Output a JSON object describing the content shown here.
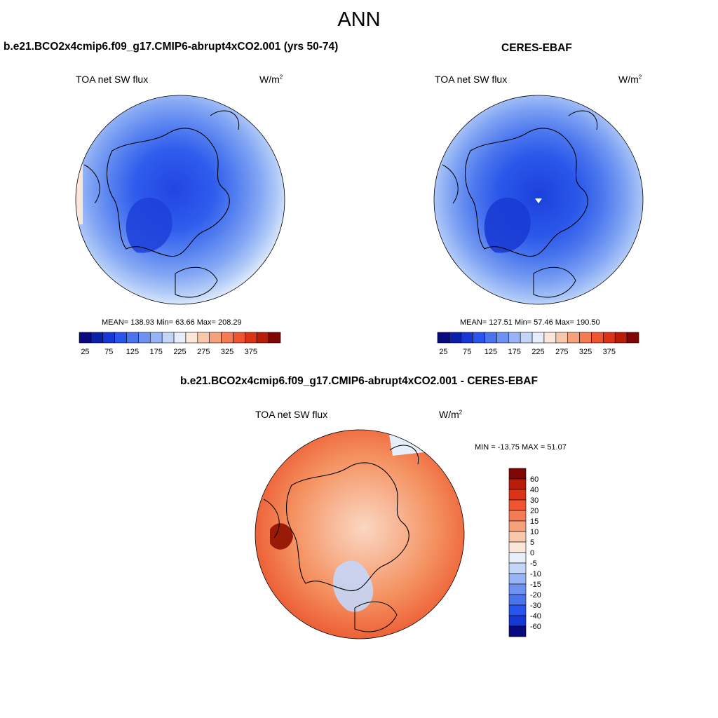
{
  "figure": {
    "title": "ANN",
    "panel_test": {
      "title": "b.e21.BCO2x4cmip6.f09_g17.CMIP6-abrupt4xCO2.001 (yrs 50-74)",
      "variable": "TOA net SW flux",
      "units_base": "W/m",
      "units_exp": "2",
      "stats": "MEAN= 138.93  Min=  63.66  Max= 208.29",
      "mean": 138.93,
      "min": 63.66,
      "max": 208.29
    },
    "panel_ref": {
      "title": "CERES-EBAF",
      "variable": "TOA net SW flux",
      "units_base": "W/m",
      "units_exp": "2",
      "stats": "MEAN= 127.51  Min=  57.46  Max= 190.50",
      "mean": 127.51,
      "min": 57.46,
      "max": 190.5
    },
    "panel_diff": {
      "title": "b.e21.BCO2x4cmip6.f09_g17.CMIP6-abrupt4xCO2.001 - CERES-EBAF",
      "variable": "TOA net SW flux",
      "units_base": "W/m",
      "units_exp": "2",
      "stats": "MIN = -13.75 MAX =  51.07",
      "min": -13.75,
      "max": 51.07
    },
    "colorbar_abs": {
      "tick_labels": [
        "25",
        "75",
        "125",
        "175",
        "225",
        "275",
        "325",
        "375"
      ],
      "colors": [
        "#0a0a80",
        "#0b1fa8",
        "#1637d4",
        "#2a55ec",
        "#4a74ee",
        "#6f92f2",
        "#98b3f6",
        "#c4d6f8",
        "#e6eefa",
        "#fbe6da",
        "#f8c7ab",
        "#f5a27c",
        "#f47b53",
        "#ee5530",
        "#dc3316",
        "#b81d0a",
        "#800505"
      ]
    },
    "colorbar_diff": {
      "tick_labels": [
        "60",
        "40",
        "30",
        "20",
        "15",
        "10",
        "5",
        "0",
        "-5",
        "-10",
        "-15",
        "-20",
        "-30",
        "-40",
        "-60"
      ],
      "colors": [
        "#800505",
        "#b81d0a",
        "#dc3316",
        "#ee5530",
        "#f47b53",
        "#f5a27c",
        "#f8c7ab",
        "#fbe6da",
        "#e6eefa",
        "#c4d6f8",
        "#98b3f6",
        "#6f92f2",
        "#4a74ee",
        "#2a55ec",
        "#1637d4",
        "#0a0a80"
      ]
    }
  }
}
